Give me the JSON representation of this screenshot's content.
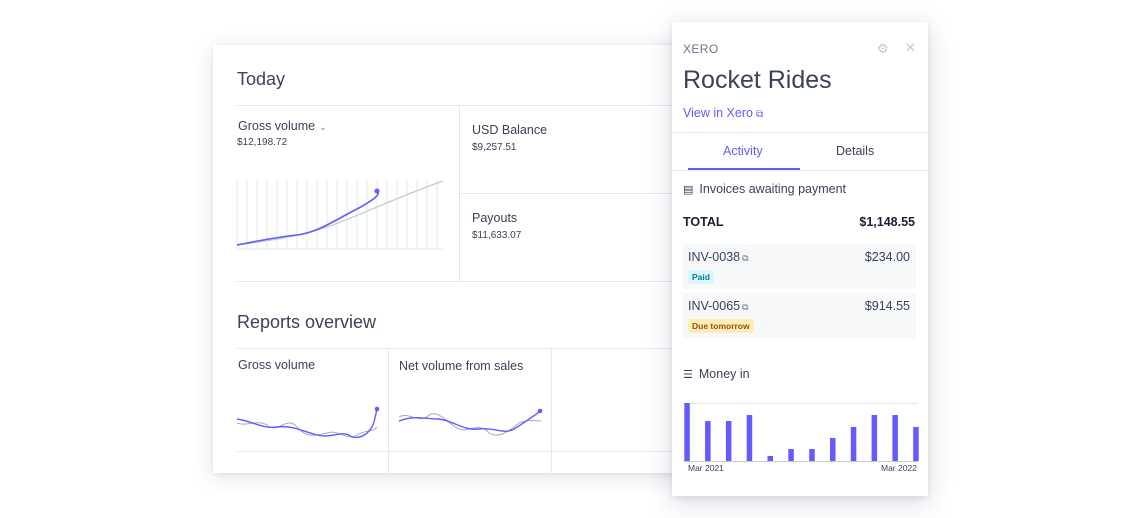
{
  "dashboard": {
    "today_title": "Today",
    "gross_volume": {
      "label": "Gross volume",
      "value": "$12,198.72"
    },
    "usd_balance": {
      "label": "USD Balance",
      "value": "$9,257.51"
    },
    "payouts": {
      "label": "Payouts",
      "value": "$11,633.07"
    },
    "reports_title": "Reports overview",
    "reports": [
      {
        "label": "Gross volume"
      },
      {
        "label": "Net volume from sales"
      }
    ]
  },
  "panel": {
    "brand": "XERO",
    "customer": "Rocket Rides",
    "view_link": "View in Xero",
    "tabs": [
      {
        "label": "Activity",
        "active": true
      },
      {
        "label": "Details",
        "active": false
      }
    ],
    "invoices_title": "Invoices awaiting payment",
    "total_label": "TOTAL",
    "total_value": "$1,148.55",
    "invoices": [
      {
        "id": "INV-0038",
        "amount": "$234.00",
        "status": "Paid"
      },
      {
        "id": "INV-0065",
        "amount": "$914.55",
        "status": "Due tomorrow"
      }
    ],
    "money_in_title": "Money in",
    "money_in_chart": {
      "type": "bar",
      "x_start_label": "Mar 2021",
      "x_end_label": "Mar 2022",
      "values": [
        58,
        40,
        40,
        46,
        5,
        12,
        12,
        23,
        34,
        46,
        46,
        34
      ],
      "color": "#635bff"
    }
  },
  "colors": {
    "accent": "#635bff",
    "text": "#3c4257",
    "divider": "#e3e8ee"
  }
}
